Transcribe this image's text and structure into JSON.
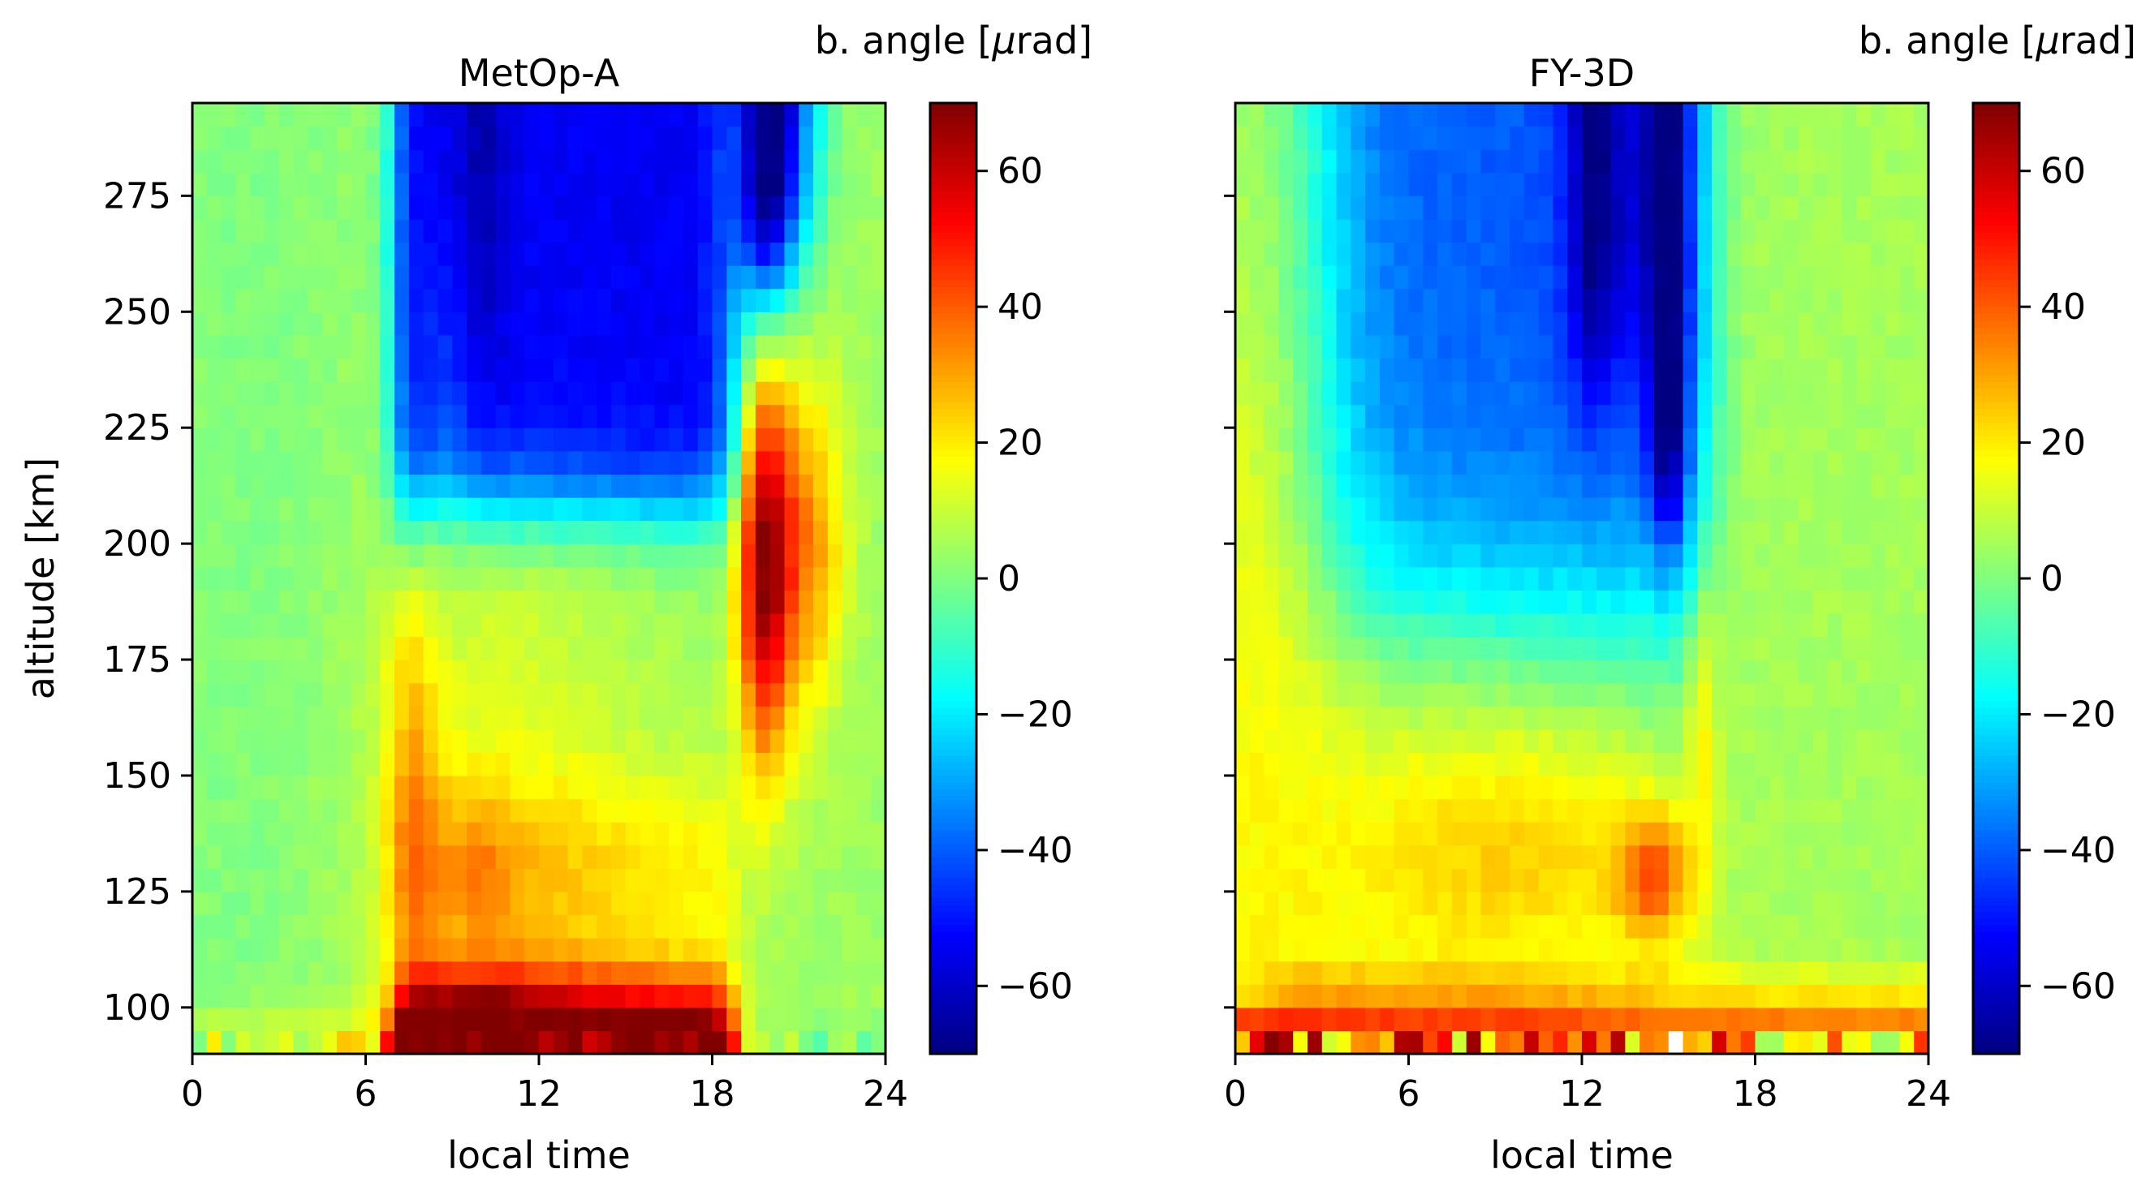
{
  "chart_data": [
    {
      "type": "heatmap",
      "title": "MetOp-A",
      "xlabel": "local time",
      "ylabel": "altitude [km]",
      "xlim": [
        0,
        24
      ],
      "ylim": [
        90,
        295
      ],
      "xticks": [
        0,
        6,
        12,
        18,
        24
      ],
      "xtick_labels": [
        "0",
        "6",
        "12",
        "18",
        "24"
      ],
      "yticks": [
        100,
        125,
        150,
        175,
        200,
        225,
        250,
        275
      ],
      "ytick_labels": [
        "100",
        "125",
        "150",
        "175",
        "200",
        "225",
        "250",
        "275"
      ],
      "colorbar": {
        "label": "b. angle [μrad]",
        "label_parts": [
          "b. angle [",
          "μ",
          "rad]"
        ],
        "range": [
          -70,
          70
        ],
        "ticks": [
          60,
          40,
          20,
          0,
          -20,
          -40,
          -60
        ],
        "tick_labels": [
          "60",
          "40",
          "20",
          "0",
          "−20",
          "−40",
          "−60"
        ],
        "colormap": "jet"
      },
      "grid": {
        "x_bins": 48,
        "y_bins": 41,
        "x_step_hours": 0.5,
        "y_step_km": 5
      },
      "features": [
        {
          "x_range_hours": [
            7,
            19
          ],
          "y_range_km": [
            205,
            295
          ],
          "value": -55,
          "description": "daytime depression"
        },
        {
          "x_range_hours": [
            9.5,
            10.5
          ],
          "y_range_km": [
            240,
            295
          ],
          "value": -67,
          "description": "deepest column"
        },
        {
          "x_range_hours": [
            19,
            21
          ],
          "y_range_km": [
            150,
            230
          ],
          "value": 65,
          "description": "evening maximum"
        },
        {
          "x_range_hours": [
            7,
            18.5
          ],
          "y_range_km": [
            90,
            110
          ],
          "value": 60,
          "description": "lower E-region band"
        }
      ]
    },
    {
      "type": "heatmap",
      "title": "FY-3D",
      "xlabel": "local time",
      "ylabel": "",
      "xlim": [
        0,
        24
      ],
      "ylim": [
        90,
        295
      ],
      "xticks": [
        0,
        6,
        12,
        18,
        24
      ],
      "xtick_labels": [
        "0",
        "6",
        "12",
        "18",
        "24"
      ],
      "yticks": [
        100,
        125,
        150,
        175,
        200,
        225,
        250,
        275
      ],
      "ytick_labels": [],
      "colorbar": {
        "label": "b. angle [μrad]",
        "label_parts": [
          "b. angle [",
          "μ",
          "rad]"
        ],
        "range": [
          -70,
          70
        ],
        "ticks": [
          60,
          40,
          20,
          0,
          -20,
          -40,
          -60
        ],
        "tick_labels": [
          "60",
          "40",
          "20",
          "0",
          "−20",
          "−40",
          "−60"
        ],
        "colormap": "jet"
      },
      "grid": {
        "x_bins": 48,
        "y_bins": 41,
        "x_step_hours": 0.5,
        "y_step_km": 5
      },
      "features": [
        {
          "x_range_hours": [
            3,
            16.5
          ],
          "y_range_km": [
            195,
            295
          ],
          "value": -50,
          "description": "daytime depression"
        },
        {
          "x_range_hours": [
            14.8,
            15.4
          ],
          "y_range_km": [
            215,
            295
          ],
          "value": -66,
          "description": "deepest column"
        },
        {
          "x_range_hours": [
            12.5,
            15
          ],
          "y_range_km": [
            120,
            140
          ],
          "value": 40,
          "description": "afternoon enhancement"
        },
        {
          "x_range_hours": [
            0,
            24
          ],
          "y_range_km": [
            90,
            100
          ],
          "value": 50,
          "description": "lowest layer band"
        }
      ]
    }
  ]
}
